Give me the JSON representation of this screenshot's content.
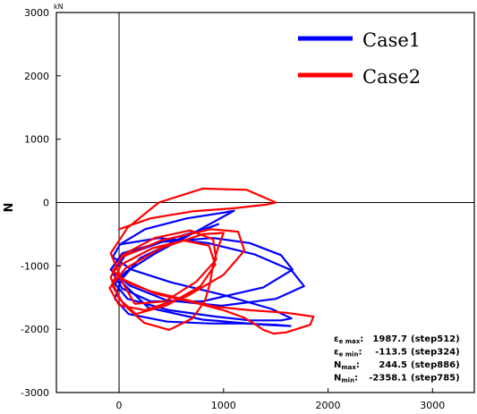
{
  "chart_data": {
    "type": "line",
    "title": "",
    "xlabel": "",
    "ylabel": "N",
    "y_unit": "kN",
    "xlim": [
      -600,
      3400
    ],
    "ylim": [
      -3000,
      3000
    ],
    "x_ticks": [
      "0",
      "1000",
      "2000",
      "3000"
    ],
    "x_tick_values": [
      0,
      1000,
      2000,
      3000
    ],
    "y_ticks": [
      "3000",
      "2000",
      "1000",
      "0",
      "-1000",
      "-2000",
      "-3000"
    ],
    "y_tick_values": [
      3000,
      2000,
      1000,
      0,
      -1000,
      -2000,
      -3000
    ],
    "grid": false,
    "legend_position": "top-right",
    "series": [
      {
        "name": "Case1",
        "color": "#0000ff",
        "x": [
          20,
          250,
          650,
          1000,
          1100,
          780,
          350,
          60,
          -40,
          80,
          480,
          920,
          1250,
          1550,
          1650,
          1460,
          1020,
          500,
          120,
          -60,
          10,
          380,
          850,
          1300,
          1650,
          1770,
          1500,
          980,
          450,
          100,
          -80,
          30,
          420,
          900,
          1250,
          1550,
          1660,
          1380,
          800,
          300,
          30,
          -60,
          60,
          480,
          860,
          950,
          620,
          200,
          20,
          -40,
          90,
          460,
          880,
          1200,
          1500,
          1640,
          1380,
          800,
          280,
          20
        ],
        "y": [
          -650,
          -420,
          -250,
          -160,
          -130,
          -420,
          -800,
          -1100,
          -1280,
          -1520,
          -1700,
          -1800,
          -1860,
          -1860,
          -1830,
          -1680,
          -1470,
          -1260,
          -1060,
          -860,
          -660,
          -560,
          -640,
          -820,
          -1070,
          -1320,
          -1520,
          -1630,
          -1540,
          -1310,
          -1060,
          -800,
          -620,
          -560,
          -640,
          -830,
          -1060,
          -1340,
          -1560,
          -1560,
          -1360,
          -1110,
          -830,
          -580,
          -400,
          -340,
          -540,
          -880,
          -1220,
          -1520,
          -1760,
          -1880,
          -1910,
          -1910,
          -1930,
          -1950,
          -1930,
          -1850,
          -1660,
          -1250
        ]
      },
      {
        "name": "Case2",
        "color": "#ff0000",
        "x": [
          0,
          300,
          700,
          1100,
          1420,
          1500,
          1220,
          800,
          380,
          80,
          -80,
          20,
          350,
          720,
          1000,
          1200,
          1300,
          1380,
          1480,
          1600,
          1830,
          1860,
          1600,
          1250,
          900,
          600,
          300,
          80,
          -60,
          30,
          400,
          880,
          1140,
          1200,
          1000,
          650,
          250,
          0,
          -90,
          60,
          400,
          800,
          1000,
          950,
          900,
          870,
          820,
          700,
          480,
          240,
          50,
          -70,
          20,
          320,
          620,
          860,
          920,
          780,
          460,
          160,
          0,
          -80,
          30,
          340,
          680,
          900,
          930,
          740,
          440,
          150,
          10
        ],
        "y": [
          -420,
          -250,
          -140,
          -90,
          -30,
          0,
          200,
          220,
          0,
          -400,
          -800,
          -1200,
          -1440,
          -1580,
          -1700,
          -1820,
          -1920,
          -2010,
          -2070,
          -2050,
          -1930,
          -1800,
          -1740,
          -1700,
          -1640,
          -1520,
          -1400,
          -1260,
          -1080,
          -860,
          -600,
          -420,
          -460,
          -760,
          -1140,
          -1480,
          -1700,
          -1620,
          -1350,
          -1040,
          -720,
          -500,
          -480,
          -700,
          -980,
          -1280,
          -1560,
          -1830,
          -2010,
          -1900,
          -1620,
          -1300,
          -980,
          -720,
          -600,
          -680,
          -980,
          -1320,
          -1620,
          -1760,
          -1520,
          -1180,
          -830,
          -560,
          -440,
          -580,
          -900,
          -1250,
          -1560,
          -1600,
          -1200
        ]
      }
    ],
    "stats": [
      {
        "symbol": "ε",
        "sub": "e max",
        "value": "1987.7",
        "step": "(step512)"
      },
      {
        "symbol": "ε",
        "sub": "e min",
        "value": "-113.5",
        "step": "(step324)"
      },
      {
        "symbol": "N",
        "sub": "max",
        "value": "244.5",
        "step": "(step886)"
      },
      {
        "symbol": "N",
        "sub": "min",
        "value": "-2358.1",
        "step": "(step785)"
      }
    ]
  }
}
